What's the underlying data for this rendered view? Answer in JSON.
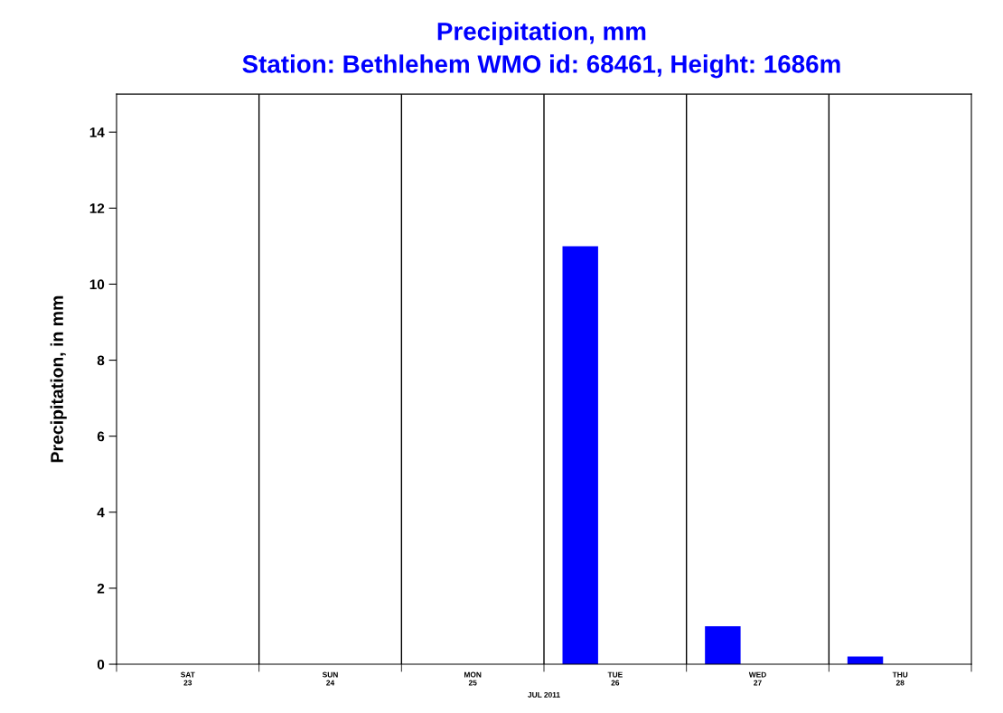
{
  "chart_data": {
    "type": "bar",
    "title": "Precipitation, mm",
    "subtitle": "Station: Bethlehem WMO id: 68461, Height: 1686m",
    "xlabel": "JUL 2011",
    "ylabel": "Precipitation, in mm",
    "categories": [
      "SAT\n23",
      "SUN\n24",
      "MON\n25",
      "TUE\n26",
      "WED\n27",
      "THU\n28"
    ],
    "values": [
      0,
      0,
      0,
      11,
      1.0,
      0.2
    ],
    "color": "#0000ff",
    "ylim": [
      0,
      15
    ],
    "yticks": [
      0,
      2,
      4,
      6,
      8,
      10,
      12,
      14
    ],
    "grid": "x"
  }
}
